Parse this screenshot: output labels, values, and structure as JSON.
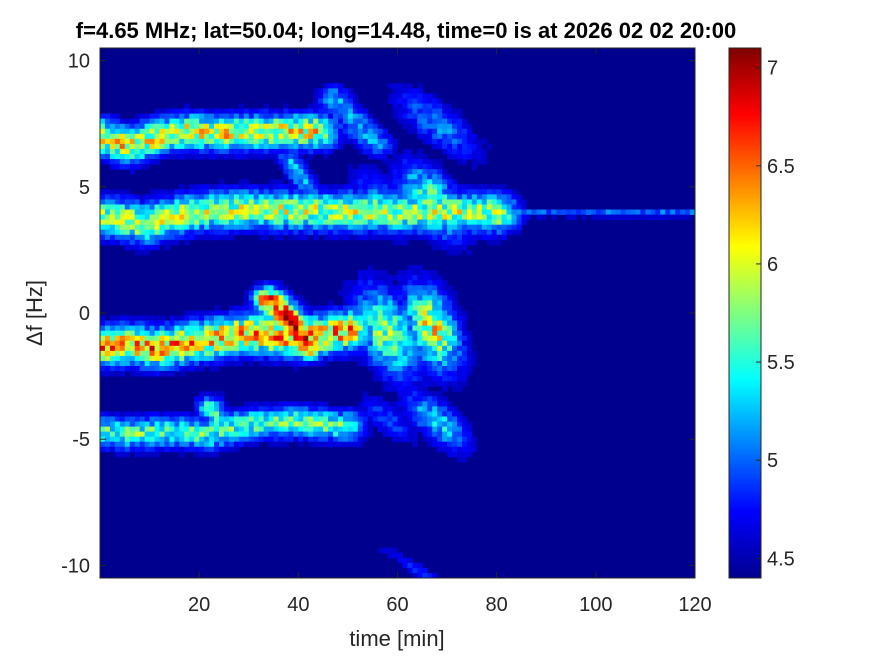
{
  "chart_data": {
    "type": "heatmap",
    "title": "f=4.65 MHz;  lat=50.04; long=14.48, time=0 is at 2026 02 02 20:00",
    "xlabel": "time [min]",
    "ylabel": "Δf [Hz]",
    "xlim": [
      0,
      120
    ],
    "ylim": [
      -10.5,
      10.5
    ],
    "xticks": [
      20,
      40,
      60,
      80,
      100,
      120
    ],
    "yticks": [
      -10,
      -5,
      0,
      5,
      10
    ],
    "colorbar": {
      "range": [
        4.4,
        7.1
      ],
      "ticks": [
        4.5,
        5,
        5.5,
        6,
        6.5,
        7
      ],
      "colormap": "jet"
    },
    "background_value": 4.45,
    "features": [
      {
        "kind": "trace",
        "points": [
          [
            0,
            7.0
          ],
          [
            6,
            6.6
          ],
          [
            12,
            7.0
          ],
          [
            18,
            7.2
          ],
          [
            24,
            7.1
          ],
          [
            32,
            7.15
          ],
          [
            44,
            7.2
          ]
        ],
        "width": 0.45,
        "peak": 6.3
      },
      {
        "kind": "trace",
        "points": [
          [
            0,
            3.8
          ],
          [
            5,
            3.7
          ],
          [
            9,
            3.5
          ],
          [
            14,
            3.8
          ],
          [
            20,
            4.0
          ],
          [
            28,
            4.1
          ],
          [
            40,
            4.05
          ],
          [
            60,
            4.0
          ],
          [
            80,
            3.95
          ]
        ],
        "width": 0.5,
        "peak": 6.1
      },
      {
        "kind": "trace",
        "points": [
          [
            0,
            -1.3
          ],
          [
            6,
            -1.25
          ],
          [
            12,
            -1.4
          ],
          [
            20,
            -1.1
          ],
          [
            30,
            -0.8
          ],
          [
            40,
            -1.0
          ],
          [
            50,
            -0.7
          ]
        ],
        "width": 0.5,
        "peak": 6.6
      },
      {
        "kind": "trace",
        "points": [
          [
            0,
            -4.7
          ],
          [
            6,
            -4.8
          ],
          [
            14,
            -4.7
          ],
          [
            22,
            -4.8
          ],
          [
            30,
            -4.4
          ],
          [
            40,
            -4.3
          ],
          [
            50,
            -4.5
          ]
        ],
        "width": 0.4,
        "peak": 5.8
      },
      {
        "kind": "trace",
        "points": [
          [
            34,
            0.5
          ],
          [
            38,
            -0.2
          ],
          [
            42,
            -1.3
          ]
        ],
        "width": 0.35,
        "peak": 6.9
      },
      {
        "kind": "trace",
        "points": [
          [
            38,
            6.1
          ],
          [
            42,
            4.9
          ],
          [
            45,
            4.0
          ]
        ],
        "width": 0.25,
        "peak": 5.3
      },
      {
        "kind": "trace",
        "points": [
          [
            47,
            8.5
          ],
          [
            52,
            7.4
          ],
          [
            56,
            6.7
          ]
        ],
        "width": 0.35,
        "peak": 5.3
      },
      {
        "kind": "trace",
        "points": [
          [
            22,
            -3.7
          ],
          [
            24,
            -4.3
          ]
        ],
        "width": 0.3,
        "peak": 5.6
      },
      {
        "kind": "blob",
        "cx": 67,
        "cy": 4.4,
        "rx": 7,
        "ry": 1.3,
        "peak": 5.9
      },
      {
        "kind": "blob",
        "cx": 57,
        "cy": 4.3,
        "rx": 6,
        "ry": 1.1,
        "peak": 5.3
      },
      {
        "kind": "blob",
        "cx": 58,
        "cy": -0.8,
        "rx": 7,
        "ry": 1.7,
        "peak": 6.0
      },
      {
        "kind": "blob",
        "cx": 67,
        "cy": -0.6,
        "rx": 6,
        "ry": 1.6,
        "peak": 6.3
      },
      {
        "kind": "blob",
        "cx": 68,
        "cy": 7.5,
        "rx": 9,
        "ry": 1.0,
        "peak": 5.2
      },
      {
        "kind": "blob",
        "cx": 68,
        "cy": -4.3,
        "rx": 7,
        "ry": 0.9,
        "peak": 5.5
      },
      {
        "kind": "blob",
        "cx": 58,
        "cy": -4.2,
        "rx": 6,
        "ry": 0.7,
        "peak": 5.0
      },
      {
        "kind": "blob",
        "cx": 65,
        "cy": -10.3,
        "rx": 9,
        "ry": 0.3,
        "peak": 4.9
      },
      {
        "kind": "hline",
        "y": 3.95,
        "x0": 0,
        "x1": 120,
        "peak": 5.2
      }
    ]
  }
}
